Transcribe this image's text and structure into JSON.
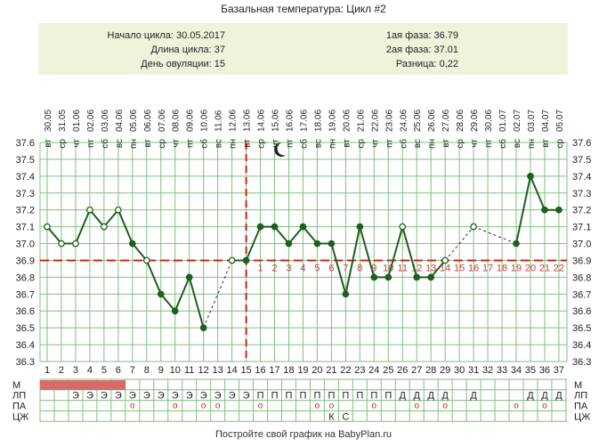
{
  "title": "Базальная температура: Цикл #2",
  "summary": {
    "cycle_start": "Начало цикла: 30.05.2017",
    "cycle_length": "Длина цикла: 37",
    "ovulation_day": "День овуляции: 15",
    "phase1": "1ая фаза: 36.79",
    "phase2": "2ая фаза: 37.01",
    "difference": "Разница: 0,22"
  },
  "footer": "Постройте свой график на BabyPlan.ru",
  "chart_data": {
    "type": "line",
    "y_range": [
      36.3,
      37.6
    ],
    "y_ticks": [
      "36.3",
      "36.4",
      "36.5",
      "36.6",
      "36.7",
      "36.8",
      "36.9",
      "37.0",
      "37.1",
      "37.2",
      "37.3",
      "37.4",
      "37.5",
      "37.6"
    ],
    "dates": [
      "30.05",
      "31.05",
      "01.06",
      "02.06",
      "03.06",
      "04.06",
      "05.06",
      "06.06",
      "07.06",
      "08.06",
      "09.06",
      "10.06",
      "11.06",
      "12.06",
      "13.06",
      "14.06",
      "15.06",
      "16.06",
      "17.06",
      "18.06",
      "19.06",
      "20.06",
      "21.06",
      "22.06",
      "23.06",
      "24.06",
      "25.06",
      "26.06",
      "27.06",
      "28.06",
      "29.06",
      "30.06",
      "01.07",
      "02.07",
      "03.07",
      "04.07",
      "05.07"
    ],
    "weekdays": [
      "вт",
      "ср",
      "чт",
      "пт",
      "сб",
      "вс",
      "пн",
      "вт",
      "ср",
      "чт",
      "пт",
      "сб",
      "вс",
      "пн",
      "вт",
      "ср",
      "чт",
      "пт",
      "сб",
      "вс",
      "пн",
      "вт",
      "ср",
      "чт",
      "пт",
      "сб",
      "вс",
      "пн",
      "вт",
      "ср",
      "чт",
      "пт",
      "сб",
      "вс",
      "пн",
      "вт",
      "ср"
    ],
    "days": [
      "1",
      "2",
      "3",
      "4",
      "5",
      "6",
      "7",
      "8",
      "9",
      "10",
      "11",
      "12",
      "13",
      "14",
      "15",
      "16",
      "17",
      "18",
      "19",
      "20",
      "21",
      "22",
      "23",
      "24",
      "25",
      "26",
      "27",
      "28",
      "29",
      "30",
      "31",
      "32",
      "33",
      "34",
      "35",
      "36",
      "37"
    ],
    "temps": [
      37.1,
      37.0,
      37.0,
      37.2,
      37.1,
      37.2,
      37.0,
      36.9,
      36.7,
      36.6,
      36.8,
      36.5,
      null,
      36.9,
      36.9,
      37.1,
      37.1,
      37.0,
      37.1,
      37.0,
      37.0,
      36.7,
      37.1,
      36.8,
      36.8,
      37.1,
      36.8,
      36.8,
      36.9,
      null,
      37.1,
      null,
      null,
      37.0,
      37.4,
      37.2,
      37.2
    ],
    "open_markers": [
      1,
      2,
      3,
      4,
      5,
      6,
      8,
      14,
      26,
      29,
      31
    ],
    "dashed_segments": [
      [
        12,
        14
      ],
      [
        29,
        31
      ],
      [
        31,
        34
      ]
    ],
    "coverline": 36.9,
    "ovulation_day": 15,
    "phase2_labels": [
      "1",
      "2",
      "3",
      "4",
      "5",
      "6",
      "7",
      "8",
      "9",
      "10",
      "11",
      "12",
      "13",
      "14",
      "15",
      "16",
      "17",
      "18",
      "19",
      "20",
      "21",
      "22"
    ],
    "moon_day": 17,
    "colors": {
      "line": "#1e5e1e",
      "grid": "#7fc07f",
      "accent": "#d42020",
      "menses": "#d86a6a"
    },
    "rows": [
      {
        "label": "М",
        "marks": {},
        "menses_days": [
          1,
          2,
          3,
          4,
          5,
          6
        ]
      },
      {
        "label": "ЛП",
        "marks": {
          "3": "Э",
          "4": "Э",
          "5": "Э",
          "6": "Э",
          "7": "Э",
          "8": "Э",
          "9": "Э",
          "10": "Э",
          "11": "Э",
          "12": "Э",
          "13": "Э",
          "14": "Э",
          "15": "Э",
          "16": "П",
          "17": "П",
          "18": "П",
          "19": "П",
          "20": "П",
          "21": "П",
          "22": "П",
          "23": "П",
          "24": "П",
          "25": "П",
          "26": "Д",
          "27": "Д",
          "28": "Д",
          "29": "Д",
          "31": "Д",
          "35": "Д",
          "36": "Д",
          "37": "Д"
        }
      },
      {
        "label": "ПА",
        "marks": {
          "7": "о",
          "10": "о",
          "12": "о",
          "13": "о",
          "16": "о",
          "20": "о",
          "21": "о",
          "24": "о",
          "27": "о",
          "29": "о",
          "34": "о",
          "36": "о"
        }
      },
      {
        "label": "ЦЖ",
        "marks": {
          "21": "К",
          "22": "С"
        }
      }
    ]
  }
}
